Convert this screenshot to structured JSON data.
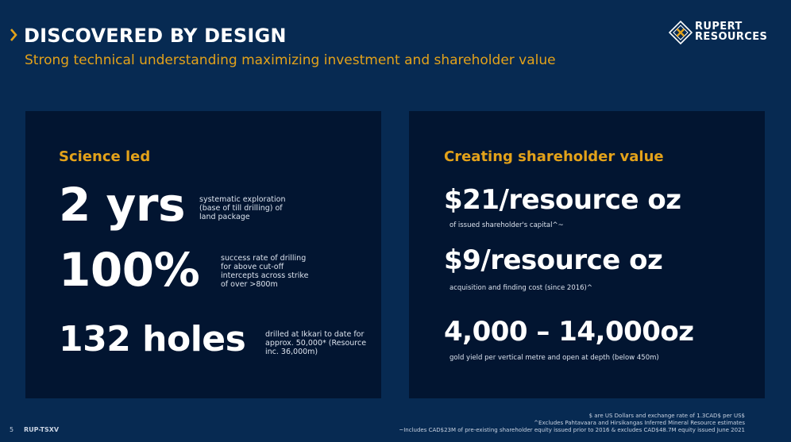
{
  "header": {
    "title": "DISCOVERED BY DESIGN",
    "subtitle": "Strong technical understanding maximizing investment and shareholder value"
  },
  "logo": {
    "line1": "RUPERT",
    "line2": "RESOURCES"
  },
  "colors": {
    "background": "#072a52",
    "panel": "#021531",
    "accent": "#e3a21a",
    "text": "#ffffff"
  },
  "left_panel": {
    "heading": "Science led",
    "stats": [
      {
        "value": "2 yrs",
        "description": "systematic exploration (base of till drilling) of land package"
      },
      {
        "value": "100%",
        "description": "success rate of drilling for above cut-off intercepts across strike of over >800m"
      },
      {
        "value": "132 holes",
        "description": "drilled at Ikkari to date for approx. 50,000* (Resource inc. 36,000m)"
      }
    ]
  },
  "right_panel": {
    "heading": "Creating shareholder value",
    "stats": [
      {
        "value": "$21/resource oz",
        "note": "of issued shareholder's capital^~"
      },
      {
        "value": "$9/resource oz",
        "note": "acquisition and finding cost  (since 2016)^"
      },
      {
        "value": "4,000 – 14,000oz",
        "note": "gold yield per vertical metre and open at depth (below 450m)"
      }
    ]
  },
  "footnotes": [
    "$ are US Dollars and exchange rate of 1.3CAD$ per US$",
    "^Excludes Pahtavaara and Hirsikangas Inferred Mineral Resource estimates",
    "~Includes CAD$23M of pre-existing shareholder equity issued prior to 2016 & excludes CAD$48.7M equity issued June 2021"
  ],
  "footer": {
    "page_number": "5",
    "ticker": "RUP-TSXV"
  }
}
